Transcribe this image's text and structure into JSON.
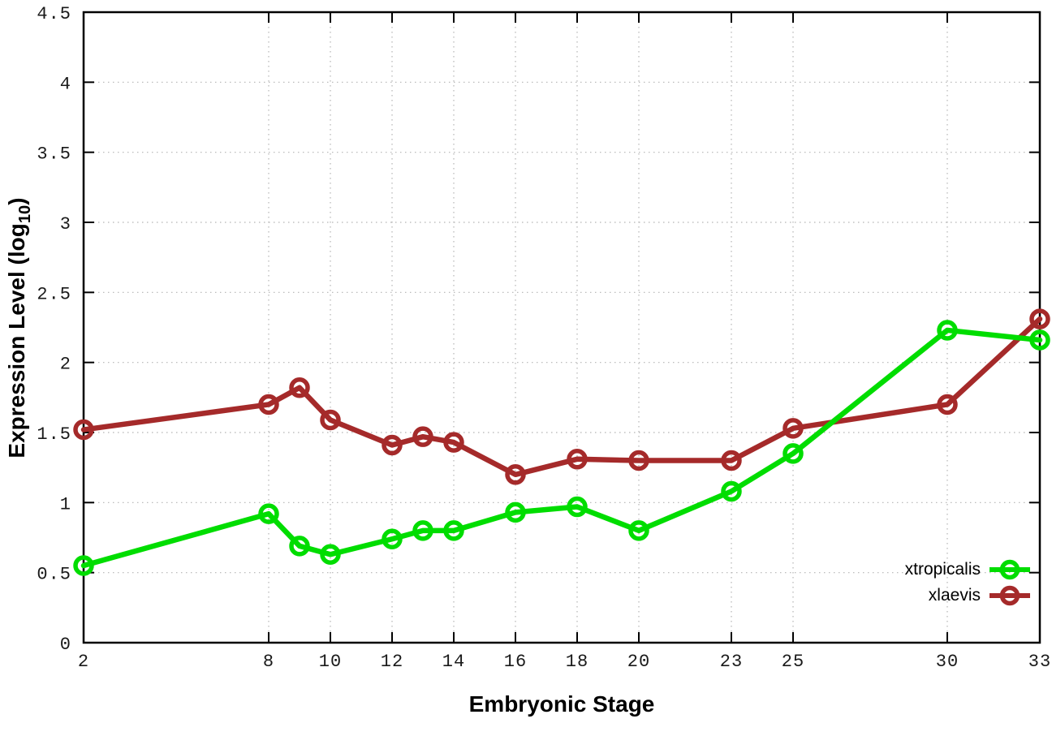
{
  "figure": {
    "background": "#ffffff",
    "axis_color": "#000000",
    "grid_color": "#b3b3b3",
    "tick_label_color": "#1a1a1a"
  },
  "axes": {
    "x": {
      "title": "Embryonic Stage",
      "range": [
        2,
        33
      ],
      "ticks": [
        {
          "v": 2,
          "label": "2"
        },
        {
          "v": 8,
          "label": "8"
        },
        {
          "v": 10,
          "label": "10"
        },
        {
          "v": 12,
          "label": "12"
        },
        {
          "v": 14,
          "label": "14"
        },
        {
          "v": 16,
          "label": "16"
        },
        {
          "v": 18,
          "label": "18"
        },
        {
          "v": 20,
          "label": "20"
        },
        {
          "v": 23,
          "label": "23"
        },
        {
          "v": 25,
          "label": "25"
        },
        {
          "v": 30,
          "label": "30"
        },
        {
          "v": 33,
          "label": "33"
        }
      ]
    },
    "y": {
      "title_main": "Expression Level (log",
      "title_sub": "10",
      "title_end": ")",
      "range": [
        0,
        4.5
      ],
      "ticks": [
        {
          "v": 0,
          "label": "0"
        },
        {
          "v": 0.5,
          "label": "0.5"
        },
        {
          "v": 1,
          "label": "1"
        },
        {
          "v": 1.5,
          "label": "1.5"
        },
        {
          "v": 2,
          "label": "2"
        },
        {
          "v": 2.5,
          "label": "2.5"
        },
        {
          "v": 3,
          "label": "3"
        },
        {
          "v": 3.5,
          "label": "3.5"
        },
        {
          "v": 4,
          "label": "4"
        },
        {
          "v": 4.5,
          "label": "4.5"
        }
      ]
    }
  },
  "legend": {
    "items": [
      {
        "label": "xtropicalis",
        "color": "#00dd00"
      },
      {
        "label": "xlaevis",
        "color": "#a52a2a"
      }
    ]
  },
  "chart_data": {
    "type": "line",
    "title": "",
    "xlabel": "Embryonic Stage",
    "ylabel": "Expression Level (log10)",
    "xlim": [
      2,
      33
    ],
    "ylim": [
      0,
      4.5
    ],
    "grid": true,
    "legend_position": "inside-bottom-right",
    "x": [
      2,
      8,
      9,
      10,
      12,
      13,
      14,
      16,
      18,
      20,
      23,
      25,
      30,
      33
    ],
    "series": [
      {
        "name": "xtropicalis",
        "color": "#00dd00",
        "marker": "open-circle",
        "z": 2,
        "values": [
          0.55,
          0.92,
          0.69,
          0.63,
          0.74,
          0.8,
          0.8,
          0.93,
          0.97,
          0.8,
          1.08,
          1.35,
          2.23,
          2.16
        ]
      },
      {
        "name": "xlaevis",
        "color": "#a52a2a",
        "marker": "open-circle",
        "z": 1,
        "values": [
          1.52,
          1.7,
          1.82,
          1.59,
          1.41,
          1.47,
          1.43,
          1.2,
          1.31,
          1.3,
          1.3,
          1.53,
          1.7,
          2.31
        ]
      }
    ]
  }
}
